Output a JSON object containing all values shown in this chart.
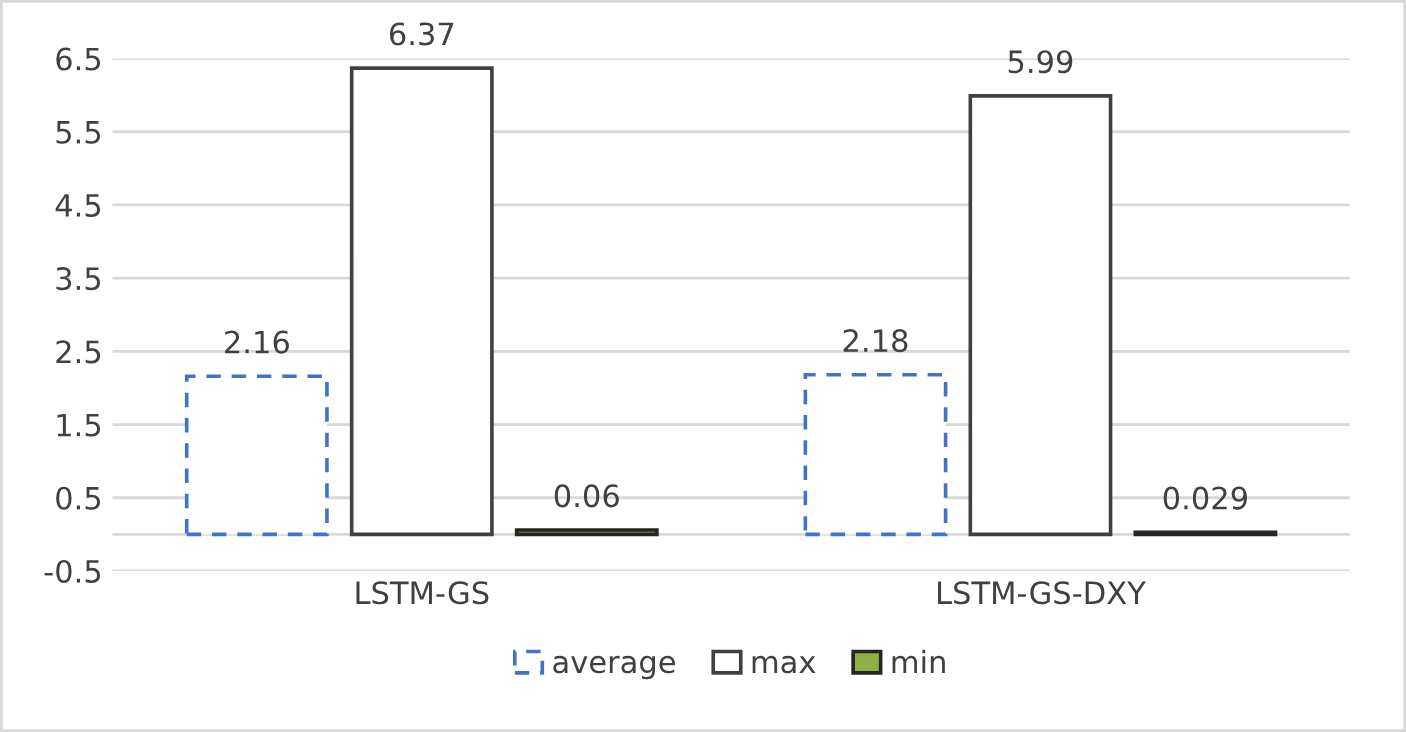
{
  "chart_data": {
    "type": "bar",
    "categories": [
      "LSTM-GS",
      "LSTM-GS-DXY"
    ],
    "series": [
      {
        "name": "average",
        "color": "#4472c4",
        "line_style": "dashed",
        "values": [
          2.16,
          2.18
        ]
      },
      {
        "name": "max",
        "color": "#404040",
        "line_style": "solid",
        "values": [
          6.37,
          5.99
        ]
      },
      {
        "name": "min",
        "color": "#8db144",
        "values": [
          0.06,
          0.029
        ]
      }
    ],
    "ylim": [
      -0.5,
      6.5
    ],
    "yticks": [
      -0.5,
      0.5,
      1.5,
      2.5,
      3.5,
      4.5,
      5.5,
      6.5
    ],
    "grid": "y",
    "legend": "bottom",
    "data_labels": true
  }
}
